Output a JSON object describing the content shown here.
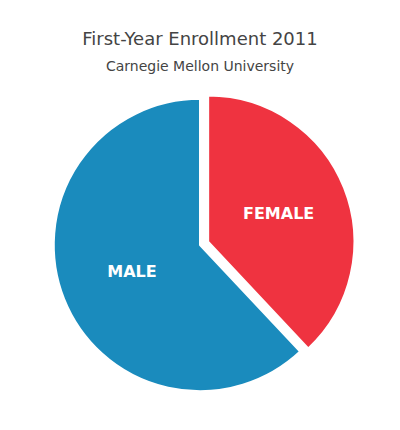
{
  "chart_data": {
    "type": "pie",
    "title": "First-Year Enrollment 2011",
    "subtitle": "Carnegie Mellon University",
    "categories": [
      "FEMALE",
      "MALE"
    ],
    "values": [
      38,
      62
    ],
    "colors": [
      "#EF3340",
      "#1A8BBD"
    ]
  }
}
